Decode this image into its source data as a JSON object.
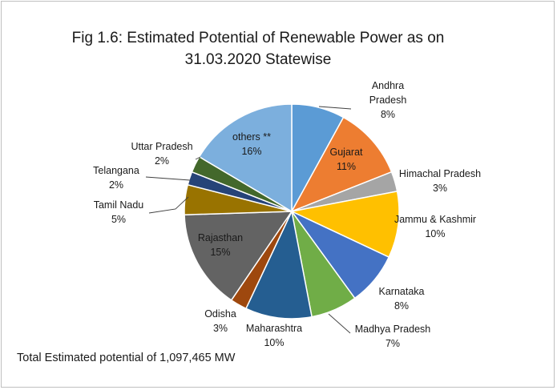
{
  "chart_data": {
    "type": "pie",
    "title_line1": "Fig 1.6: Estimated Potential of Renewable Power as on",
    "title_line2": "31.03.2020 Statewise",
    "footer": "Total Estimated potential of 1,097,465 MW",
    "slices": [
      {
        "name": "Andhra Pradesh",
        "label_lines": [
          "Andhra",
          "Pradesh"
        ],
        "pct_text": "8%",
        "value": 8.0,
        "color": "#5b9bd5"
      },
      {
        "name": "Gujarat",
        "label_lines": [
          "Gujarat"
        ],
        "pct_text": "11%",
        "value": 11.0,
        "color": "#ed7d31"
      },
      {
        "name": "Himachal Pradesh",
        "label_lines": [
          "Himachal Pradesh"
        ],
        "pct_text": "3%",
        "value": 3.0,
        "color": "#a5a5a5"
      },
      {
        "name": "Jammu & Kashmir",
        "label_lines": [
          "Jammu & Kashmir"
        ],
        "pct_text": "10%",
        "value": 10.0,
        "color": "#ffc000"
      },
      {
        "name": "Karnataka",
        "label_lines": [
          "Karnataka"
        ],
        "pct_text": "8%",
        "value": 8.0,
        "color": "#4472c4"
      },
      {
        "name": "Madhya Pradesh",
        "label_lines": [
          "Madhya Pradesh"
        ],
        "pct_text": "7%",
        "value": 7.0,
        "color": "#70ad47"
      },
      {
        "name": "Maharashtra",
        "label_lines": [
          "Maharashtra"
        ],
        "pct_text": "10%",
        "value": 10.0,
        "color": "#255e91"
      },
      {
        "name": "Odisha",
        "label_lines": [
          "Odisha"
        ],
        "pct_text": "3%",
        "value": 2.5,
        "color": "#9e480e"
      },
      {
        "name": "Rajasthan",
        "label_lines": [
          "Rajasthan"
        ],
        "pct_text": "15%",
        "value": 15.0,
        "color": "#636363"
      },
      {
        "name": "Tamil Nadu",
        "label_lines": [
          "Tamil Nadu"
        ],
        "pct_text": "5%",
        "value": 4.5,
        "color": "#997300"
      },
      {
        "name": "Telangana",
        "label_lines": [
          "Telangana"
        ],
        "pct_text": "2%",
        "value": 2.0,
        "color": "#264478"
      },
      {
        "name": "Uttar Pradesh",
        "label_lines": [
          "Uttar Pradesh"
        ],
        "pct_text": "2%",
        "value": 2.5,
        "color": "#43682b"
      },
      {
        "name": "others **",
        "label_lines": [
          "others **"
        ],
        "pct_text": "16%",
        "value": 16.5,
        "color": "#7cafdd"
      }
    ]
  }
}
